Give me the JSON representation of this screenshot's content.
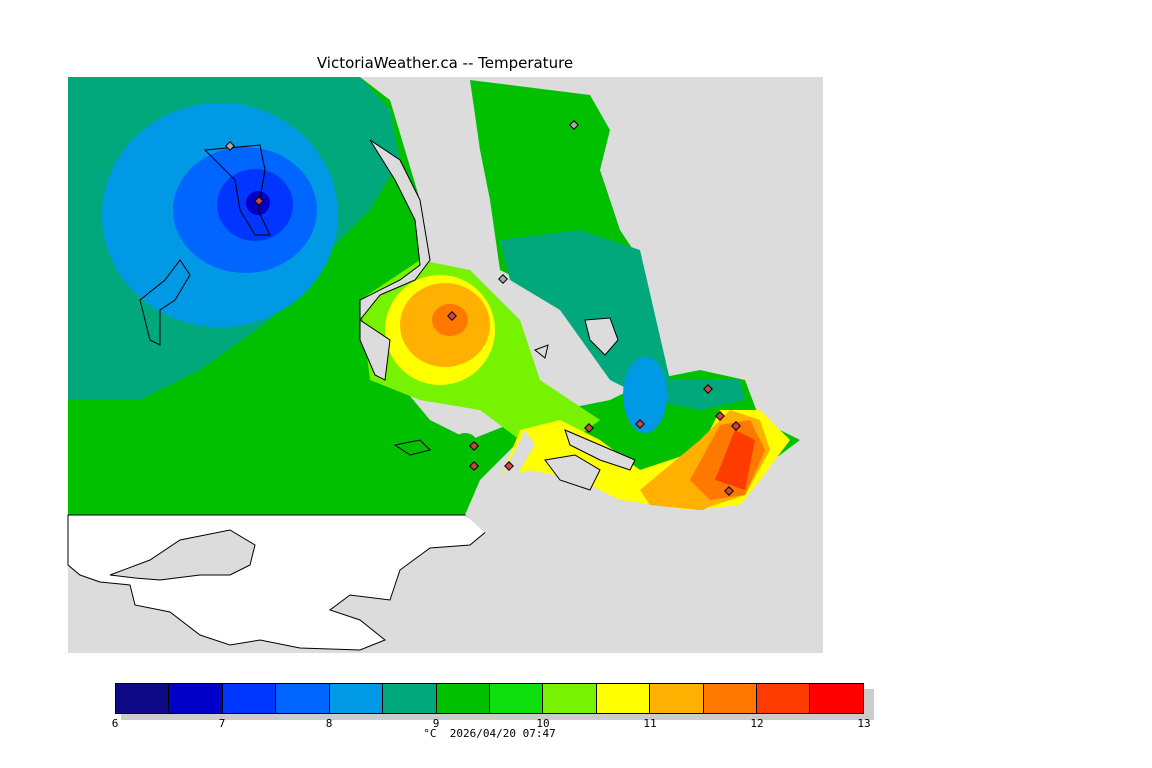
{
  "title": "VictoriaWeather.ca -- Temperature",
  "legend": {
    "colors": [
      "#0e0a85",
      "#0000c8",
      "#0036ff",
      "#0066ff",
      "#0099e6",
      "#00a87c",
      "#00c000",
      "#0ee00e",
      "#77f200",
      "#ffff00",
      "#ffb000",
      "#ff7800",
      "#ff3c00",
      "#ff0000"
    ],
    "ticks": [
      "6",
      "7",
      "8",
      "9",
      "10",
      "11",
      "12",
      "13"
    ],
    "unit": "°C",
    "timestamp": "2026/04/20 07:47"
  }
}
